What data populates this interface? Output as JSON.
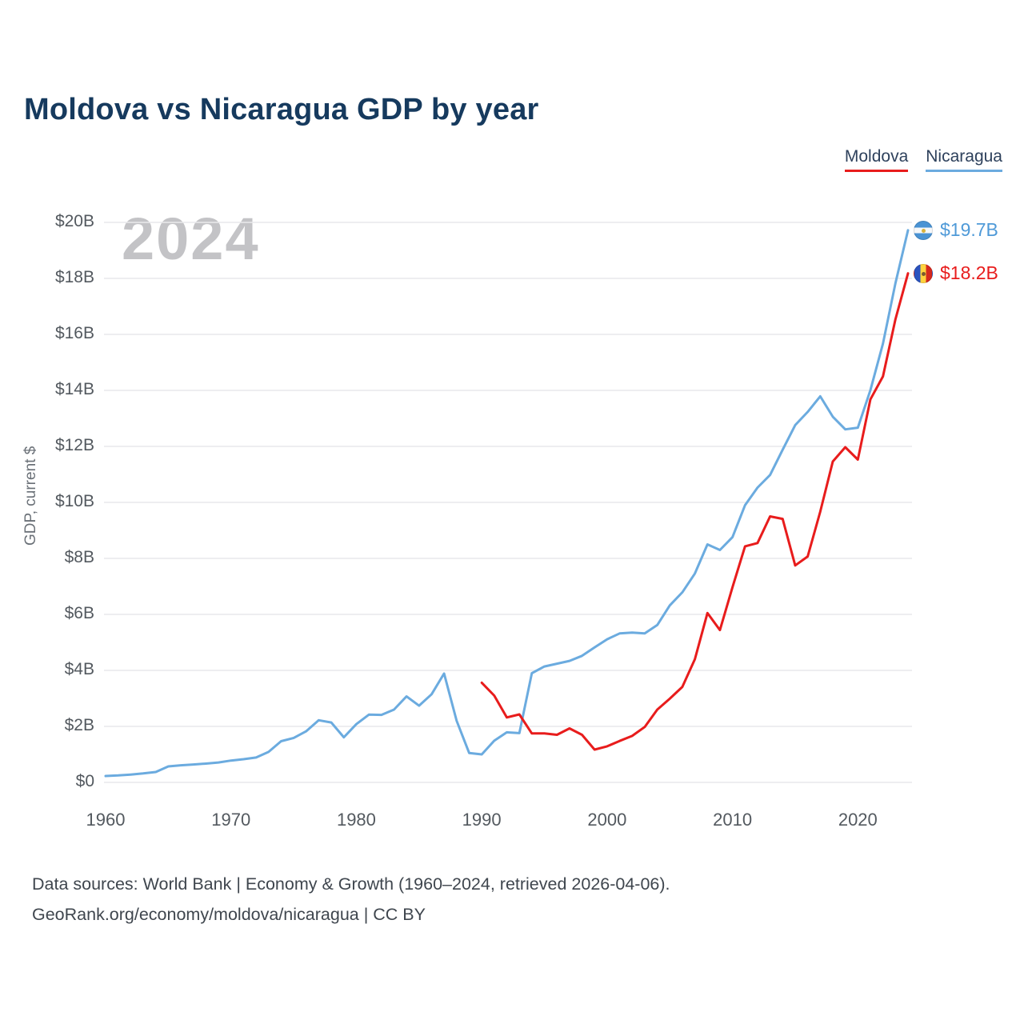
{
  "page": {
    "title": "Moldova vs Nicaragua GDP by year",
    "watermark_year": "2024",
    "footer_line1": "Data sources: World Bank | Economy & Growth (1960–2024, retrieved 2026-04-06).",
    "footer_line2": "GeoRank.org/economy/moldova/nicaragua | CC BY"
  },
  "legend": {
    "items": [
      {
        "label": "Moldova",
        "color": "#e81c1c"
      },
      {
        "label": "Nicaragua",
        "color": "#6babdf"
      }
    ]
  },
  "chart_data": {
    "type": "line",
    "title": "Moldova vs Nicaragua GDP by year",
    "xlabel": "",
    "ylabel": "GDP, current $",
    "x_range": [
      1960,
      2024
    ],
    "ylim": [
      0,
      20
    ],
    "grid": true,
    "legend_position": "top-right",
    "y_ticks": [
      {
        "value": 0,
        "label": "$0"
      },
      {
        "value": 2,
        "label": "$2B"
      },
      {
        "value": 4,
        "label": "$4B"
      },
      {
        "value": 6,
        "label": "$6B"
      },
      {
        "value": 8,
        "label": "$8B"
      },
      {
        "value": 10,
        "label": "$10B"
      },
      {
        "value": 12,
        "label": "$12B"
      },
      {
        "value": 14,
        "label": "$14B"
      },
      {
        "value": 16,
        "label": "$16B"
      },
      {
        "value": 18,
        "label": "$18B"
      },
      {
        "value": 20,
        "label": "$20B"
      }
    ],
    "x_ticks": [
      {
        "value": 1960,
        "label": "1960"
      },
      {
        "value": 1970,
        "label": "1970"
      },
      {
        "value": 1980,
        "label": "1980"
      },
      {
        "value": 1990,
        "label": "1990"
      },
      {
        "value": 2000,
        "label": "2000"
      },
      {
        "value": 2010,
        "label": "2010"
      },
      {
        "value": 2020,
        "label": "2020"
      }
    ],
    "series": [
      {
        "name": "Nicaragua",
        "color": "#6babdf",
        "start_year": 1960,
        "unit": "billion USD",
        "values": [
          0.23,
          0.25,
          0.28,
          0.32,
          0.37,
          0.57,
          0.61,
          0.64,
          0.67,
          0.71,
          0.78,
          0.83,
          0.89,
          1.09,
          1.47,
          1.59,
          1.83,
          2.22,
          2.14,
          1.61,
          2.08,
          2.42,
          2.41,
          2.6,
          3.07,
          2.74,
          3.15,
          3.89,
          2.2,
          1.05,
          1.0,
          1.49,
          1.79,
          1.76,
          3.9,
          4.14,
          4.24,
          4.34,
          4.52,
          4.82,
          5.11,
          5.32,
          5.35,
          5.32,
          5.62,
          6.32,
          6.79,
          7.46,
          8.5,
          8.3,
          8.76,
          9.9,
          10.53,
          10.98,
          11.88,
          12.76,
          13.23,
          13.79,
          13.06,
          12.61,
          12.67,
          14.01,
          15.67,
          17.83,
          19.72
        ]
      },
      {
        "name": "Moldova",
        "color": "#e81c1c",
        "start_year": 1990,
        "unit": "billion USD",
        "values": [
          3.56,
          3.1,
          2.32,
          2.43,
          1.75,
          1.75,
          1.7,
          1.93,
          1.7,
          1.17,
          1.29,
          1.48,
          1.66,
          1.98,
          2.6,
          2.99,
          3.41,
          4.4,
          6.05,
          5.44,
          6.97,
          8.43,
          8.55,
          9.5,
          9.41,
          7.75,
          8.07,
          9.67,
          11.46,
          11.97,
          11.53,
          13.68,
          14.5,
          16.54,
          18.18
        ]
      }
    ],
    "end_labels": [
      {
        "series": "Nicaragua",
        "label": "$19.7B",
        "value": 19.72,
        "color": "#4f9ad8",
        "flag": "nicaragua-flag-icon"
      },
      {
        "series": "Moldova",
        "label": "$18.2B",
        "value": 18.18,
        "color": "#e81c1c",
        "flag": "moldova-flag-icon"
      }
    ]
  }
}
